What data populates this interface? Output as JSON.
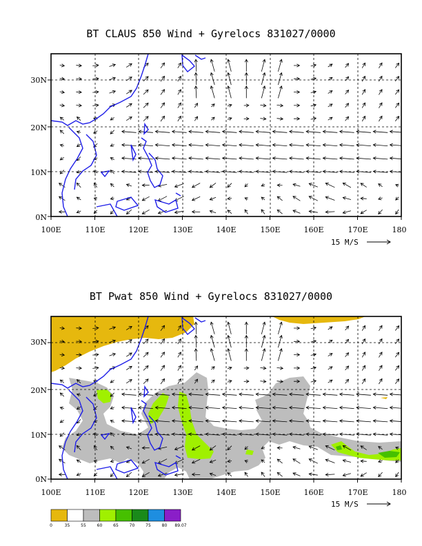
{
  "panel1": {
    "title": "BT CLAUS 850 Wind + Gyrelocs 831027/0000",
    "xticks": [
      "100E",
      "110E",
      "120E",
      "130E",
      "140E",
      "150E",
      "160E",
      "170E",
      "180"
    ],
    "yticks": [
      "0N",
      "10N",
      "20N",
      "30N"
    ],
    "ref_vector_label": "15 M/S"
  },
  "panel2": {
    "title": "BT Pwat 850 Wind + Gyrelocs 831027/0000",
    "xticks": [
      "100E",
      "110E",
      "120E",
      "130E",
      "140E",
      "150E",
      "160E",
      "170E",
      "180"
    ],
    "yticks": [
      "0N",
      "10N",
      "20N",
      "30N"
    ],
    "ref_vector_label": "15 M/S"
  },
  "colorbar": {
    "labels": [
      "0",
      "35",
      "55",
      "60",
      "65",
      "70",
      "75",
      "80",
      "89.07"
    ],
    "colors": [
      "#e6b80e",
      "#ffffff",
      "#bdbdbd",
      "#a0f000",
      "#46c000",
      "#1a8a1a",
      "#1e8ee0",
      "#8a1ec8"
    ]
  },
  "colors": {
    "coast": "#1e1ee8",
    "grid": "#000000",
    "arrow": "#000000"
  }
}
